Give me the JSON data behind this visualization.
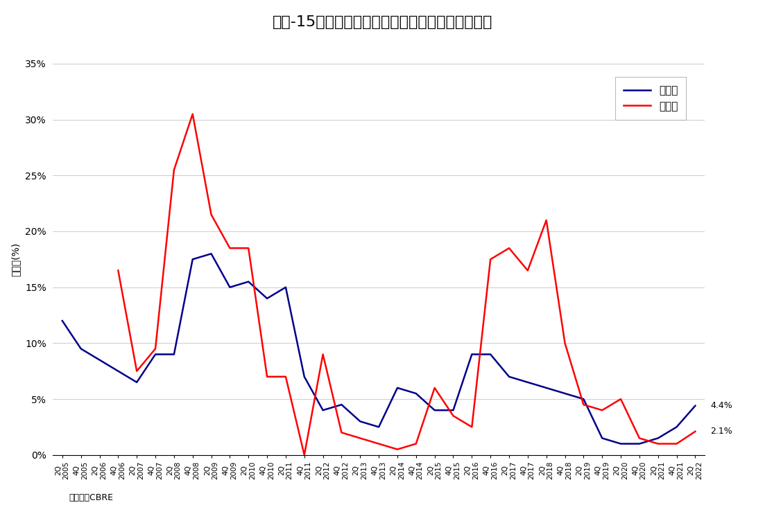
{
  "title": "図表-15　大型マルチテナント型物流施設の空室率",
  "ylabel": "空室率(%)",
  "source": "（出所）CBRE",
  "legend_tokyo": "首都圈",
  "legend_kinki": "近畿圈",
  "tokyo_color": "#00008B",
  "kinki_color": "#FF0000",
  "ylim": [
    0,
    0.35
  ],
  "yticks": [
    0,
    0.05,
    0.1,
    0.15,
    0.2,
    0.25,
    0.3,
    0.35
  ],
  "end_label_tokyo": "4.4%",
  "end_label_kinki": "2.1%",
  "quarters": [
    "2Q\n2005",
    "4Q\n2005",
    "2Q\n2006",
    "4Q\n2006",
    "2Q\n2007",
    "4Q\n2007",
    "2Q\n2008",
    "4Q\n2008",
    "2Q\n2009",
    "4Q\n2009",
    "2Q\n2010",
    "4Q\n2010",
    "2Q\n2011",
    "4Q\n2011",
    "2Q\n2012",
    "4Q\n2012",
    "2Q\n2013",
    "4Q\n2013",
    "2Q\n2014",
    "4Q\n2014",
    "2Q\n2015",
    "4Q\n2015",
    "2Q\n2016",
    "4Q\n2016",
    "2Q\n2017",
    "4Q\n2017",
    "2Q\n2018",
    "4Q\n2018",
    "2Q\n2019",
    "4Q\n2019",
    "2Q\n2020",
    "4Q\n2020",
    "2Q\n2021",
    "4Q\n2021",
    "2Q\n2022"
  ],
  "tokyo": [
    0.12,
    0.095,
    0.085,
    0.075,
    0.065,
    0.09,
    0.09,
    0.175,
    0.18,
    0.15,
    0.155,
    0.14,
    0.15,
    0.07,
    0.04,
    0.045,
    0.03,
    0.025,
    0.06,
    0.055,
    0.04,
    0.04,
    0.09,
    0.09,
    0.07,
    0.065,
    0.06,
    0.055,
    0.05,
    0.015,
    0.01,
    0.01,
    0.015,
    0.025,
    0.044
  ],
  "kinki": [
    null,
    null,
    null,
    0.165,
    0.075,
    0.095,
    0.255,
    0.305,
    0.215,
    0.185,
    0.185,
    0.07,
    0.07,
    0.0,
    0.09,
    0.02,
    0.015,
    0.01,
    0.005,
    0.01,
    0.06,
    0.035,
    0.025,
    0.175,
    0.185,
    0.165,
    0.21,
    0.1,
    0.045,
    0.04,
    0.05,
    0.015,
    0.01,
    0.01,
    0.021
  ]
}
